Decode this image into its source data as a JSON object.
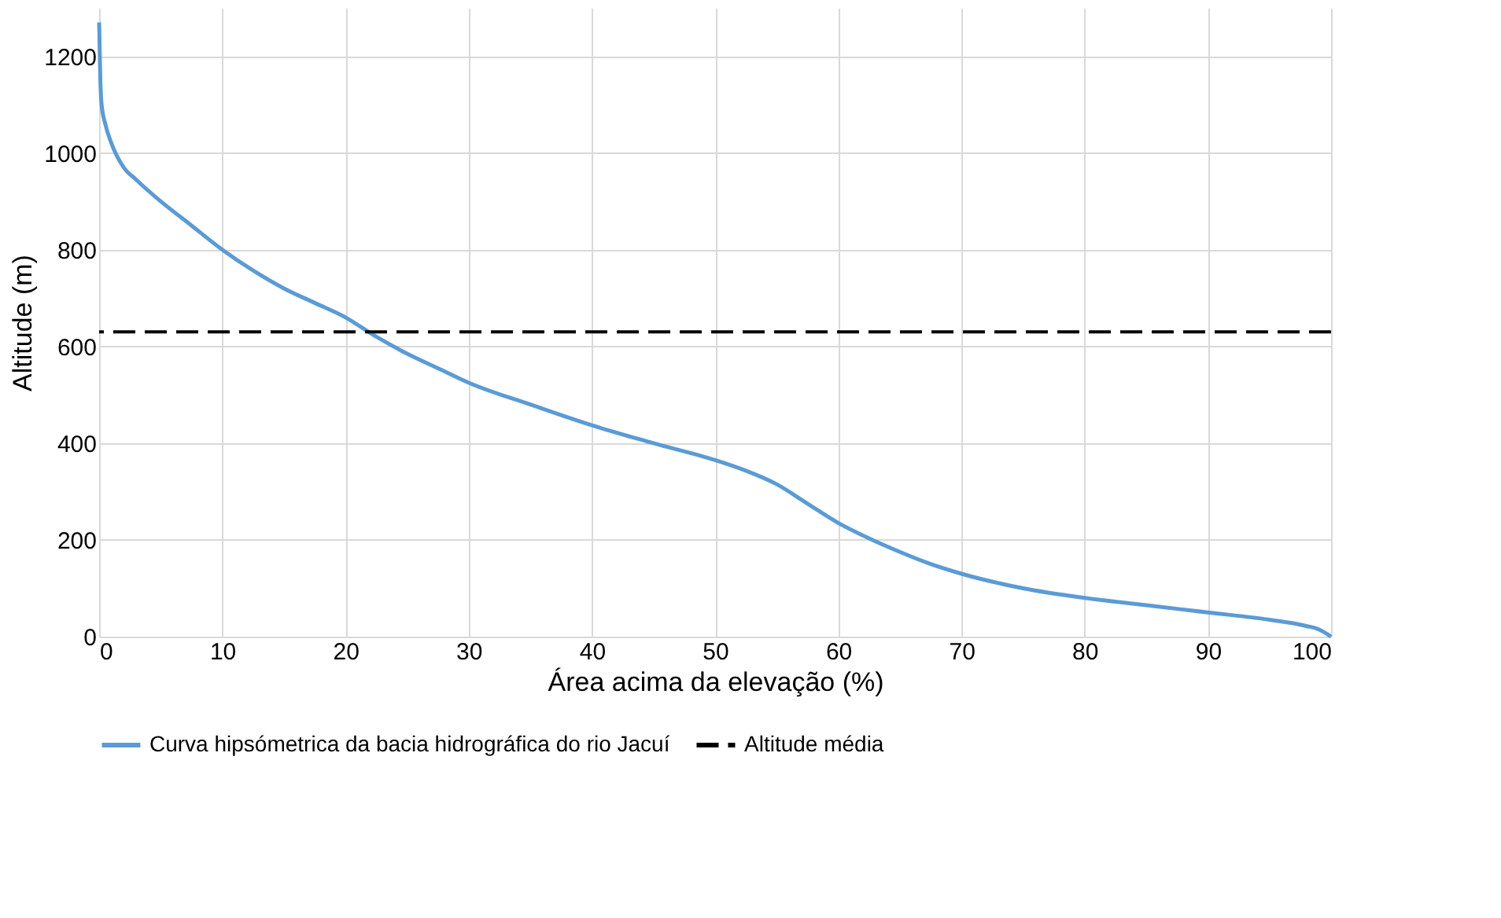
{
  "chart_data": {
    "type": "line",
    "xlabel": "Área acima da elevação (%)",
    "ylabel": "Altitude (m)",
    "xlim": [
      0,
      100
    ],
    "xticks": [
      0,
      10,
      20,
      30,
      40,
      50,
      60,
      70,
      80,
      90,
      100
    ],
    "ylim": [
      0,
      1300
    ],
    "yticks": [
      0,
      200,
      400,
      600,
      800,
      {
        "value": 1000,
        "label": "1000"
      },
      {
        "value": 1200,
        "label": "1200"
      }
    ],
    "grid": true,
    "legend": "bottom",
    "marker": "none",
    "line_style": "solid",
    "series": [
      {
        "name": "Curva hipsómetrica da bacia hidrográfica do rio Jacuí",
        "color": "#5b9bd5",
        "x": [
          0,
          0.1,
          0.2,
          0.5,
          1,
          2,
          3,
          5,
          7.5,
          10,
          12.5,
          15,
          17.5,
          20,
          22.5,
          25,
          27.5,
          30,
          35,
          40,
          45,
          50,
          52.5,
          55,
          57.5,
          60,
          62.5,
          65,
          67.5,
          70,
          75,
          80,
          85,
          90,
          95,
          98,
          99,
          100
        ],
        "values": [
          1270,
          1150,
          1100,
          1060,
          1020,
          970,
          945,
          900,
          850,
          800,
          757,
          720,
          690,
          660,
          620,
          585,
          555,
          525,
          480,
          437,
          400,
          365,
          343,
          315,
          275,
          235,
          203,
          175,
          150,
          130,
          100,
          80,
          65,
          50,
          35,
          22,
          15,
          0
        ]
      }
    ],
    "ref_lines": [
      {
        "axis": "y",
        "value": 630,
        "label": "Altitude média",
        "color": "#000000",
        "line_style": "dashed"
      }
    ]
  }
}
